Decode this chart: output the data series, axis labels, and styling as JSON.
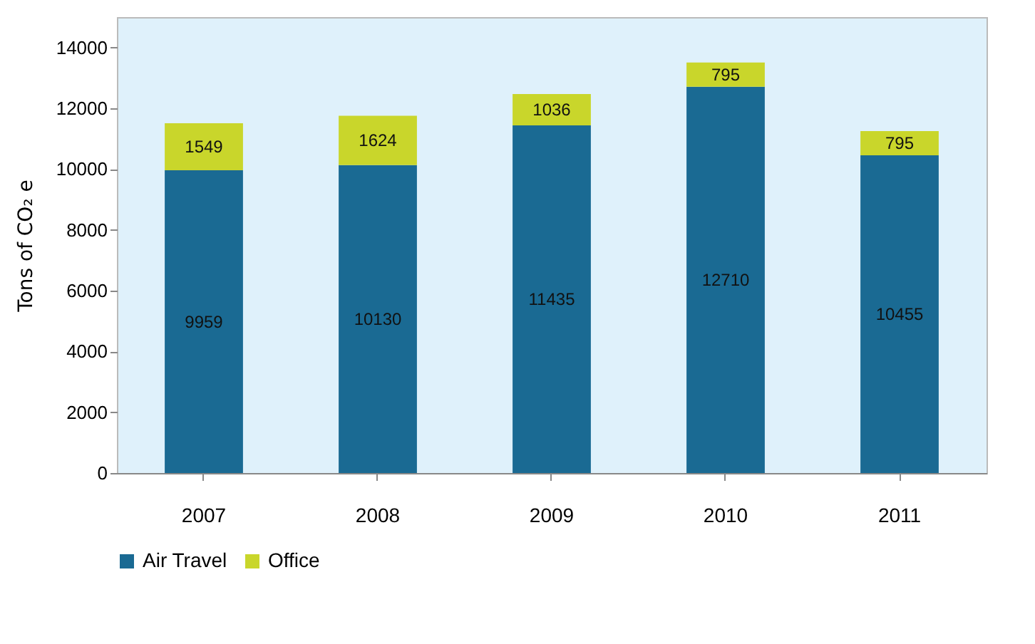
{
  "chart_data": {
    "type": "bar",
    "stacked": true,
    "ylabel": "Tons of CO₂ e",
    "categories": [
      "2007",
      "2008",
      "2009",
      "2010",
      "2011"
    ],
    "series": [
      {
        "name": "Air Travel",
        "color": "#1a6a93",
        "values": [
          9959,
          10130,
          11435,
          12710,
          10455
        ]
      },
      {
        "name": "Office",
        "color": "#c9d62b",
        "values": [
          1549,
          1624,
          1036,
          795,
          795
        ]
      }
    ],
    "ylim": [
      0,
      15000
    ],
    "yticks": [
      0,
      2000,
      4000,
      6000,
      8000,
      10000,
      12000,
      14000
    ],
    "data_labels": true,
    "legend": "bottom",
    "grid": false
  }
}
